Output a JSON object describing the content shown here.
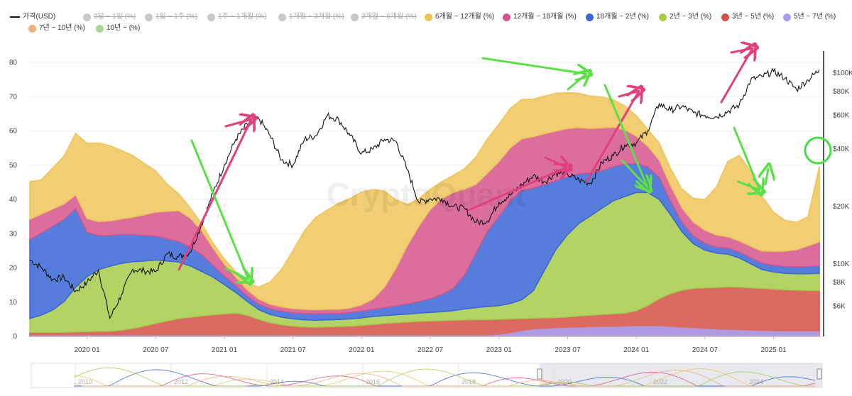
{
  "legend": {
    "items": [
      {
        "label": "가격(USD)",
        "color": "#111111",
        "kind": "line",
        "disabled": false
      },
      {
        "label": "0일 ~ 1일 (%)",
        "color": "#c8c8c8",
        "kind": "dot",
        "disabled": true
      },
      {
        "label": "1일 ~ 1주 (%)",
        "color": "#c8c8c8",
        "kind": "dot",
        "disabled": true
      },
      {
        "label": "1주 ~ 1개월 (%)",
        "color": "#c8c8c8",
        "kind": "dot",
        "disabled": true
      },
      {
        "label": "1개월 ~ 3개월 (%)",
        "color": "#c8c8c8",
        "kind": "dot",
        "disabled": true
      },
      {
        "label": "3개월 ~ 6개월 (%)",
        "color": "#c8c8c8",
        "kind": "dot",
        "disabled": true
      },
      {
        "label": "6개월 ~ 12개월 (%)",
        "color": "#eec45a",
        "kind": "dot",
        "disabled": false
      },
      {
        "label": "12개월 ~ 18개월 (%)",
        "color": "#d6558c",
        "kind": "dot",
        "disabled": false
      },
      {
        "label": "18개월 ~ 2년 (%)",
        "color": "#3a66d6",
        "kind": "dot",
        "disabled": false
      },
      {
        "label": "2년 ~ 3년 (%)",
        "color": "#a6cc4a",
        "kind": "dot",
        "disabled": false
      },
      {
        "label": "3년 ~ 5년 (%)",
        "color": "#d65048",
        "kind": "dot",
        "disabled": false
      },
      {
        "label": "5년 ~ 7년 (%)",
        "color": "#a8a0ee",
        "kind": "dot",
        "disabled": false
      },
      {
        "label": "7년 ~ 10년 (%)",
        "color": "#f0b07a",
        "kind": "dot",
        "disabled": false
      },
      {
        "label": "10년 ~ (%)",
        "color": "#a6d890",
        "kind": "dot",
        "disabled": false
      }
    ]
  },
  "watermark": "CryptoQuant",
  "navigator": {
    "year_labels": [
      "2010",
      "2012",
      "2014",
      "2016",
      "2018",
      "2020",
      "2022",
      "2024"
    ]
  },
  "chart_data": {
    "type": "area",
    "stacked": true,
    "x_ticks": [
      "2020 01",
      "2020 07",
      "2021 01",
      "2021 07",
      "2022 01",
      "2022 07",
      "2023 01",
      "2023 07",
      "2024 01",
      "2024 07",
      "2025 01"
    ],
    "x_dates": [
      "2019-08",
      "2019-09",
      "2019-10",
      "2019-11",
      "2019-12",
      "2020-01",
      "2020-02",
      "2020-03",
      "2020-04",
      "2020-05",
      "2020-06",
      "2020-07",
      "2020-08",
      "2020-09",
      "2020-10",
      "2020-11",
      "2020-12",
      "2021-01",
      "2021-02",
      "2021-03",
      "2021-04",
      "2021-05",
      "2021-06",
      "2021-07",
      "2021-08",
      "2021-09",
      "2021-10",
      "2021-11",
      "2021-12",
      "2022-01",
      "2022-02",
      "2022-03",
      "2022-04",
      "2022-05",
      "2022-06",
      "2022-07",
      "2022-08",
      "2022-09",
      "2022-10",
      "2022-11",
      "2022-12",
      "2023-01",
      "2023-02",
      "2023-03",
      "2023-04",
      "2023-05",
      "2023-06",
      "2023-07",
      "2023-08",
      "2023-09",
      "2023-10",
      "2023-11",
      "2023-12",
      "2024-01",
      "2024-02",
      "2024-03",
      "2024-04",
      "2024-05",
      "2024-06",
      "2024-07",
      "2024-08",
      "2024-09",
      "2024-10",
      "2024-11",
      "2024-12",
      "2025-01",
      "2025-02",
      "2025-03",
      "2025-04",
      "2025-05"
    ],
    "y_left": {
      "ticks": [
        0,
        10,
        20,
        30,
        40,
        50,
        60,
        70,
        80
      ],
      "ylim": [
        0,
        82
      ]
    },
    "y_right": {
      "scale": "log",
      "ticks": [
        "$6K",
        "$8K",
        "$10K",
        "$20K",
        "$40K",
        "$60K",
        "$80K",
        "$100K"
      ],
      "tick_values": [
        6000,
        8000,
        10000,
        20000,
        40000,
        60000,
        80000,
        100000
      ]
    },
    "series": [
      {
        "name": "3년 ~ 5년 (%)",
        "color": "#d65048",
        "values": [
          1.2,
          1.2,
          1.2,
          1.2,
          1.3,
          1.4,
          1.5,
          1.5,
          1.8,
          2.3,
          3.0,
          3.8,
          4.5,
          5.2,
          5.6,
          6.0,
          6.3,
          6.6,
          6.8,
          6.2,
          5.0,
          4.0,
          3.4,
          3.0,
          2.8,
          2.7,
          2.8,
          2.9,
          3.0,
          3.2,
          3.5,
          3.8,
          4.0,
          4.2,
          4.4,
          4.5,
          4.6,
          4.7,
          4.8,
          4.9,
          4.9,
          5.0,
          5.1,
          5.2,
          5.3,
          5.4,
          5.5,
          5.7,
          6.0,
          6.2,
          6.4,
          6.6,
          6.8,
          7.5,
          9.0,
          11.0,
          12.5,
          13.5,
          14.0,
          14.2,
          14.3,
          14.5,
          14.4,
          14.2,
          14.0,
          13.8,
          13.6,
          13.5,
          13.4,
          13.4
        ]
      },
      {
        "name": "2년 ~ 3년 (%)",
        "color": "#a6cc4a",
        "values": [
          4.0,
          5.0,
          6.5,
          9.0,
          13.0,
          16.0,
          18.0,
          19.0,
          19.5,
          19.5,
          19.0,
          18.5,
          17.5,
          16.5,
          15.0,
          13.0,
          11.0,
          8.5,
          6.0,
          4.0,
          2.8,
          2.4,
          2.2,
          2.1,
          2.0,
          2.0,
          2.0,
          2.0,
          2.1,
          2.2,
          2.3,
          2.3,
          2.3,
          2.3,
          2.4,
          2.5,
          2.6,
          2.8,
          3.2,
          3.5,
          3.8,
          4.0,
          4.5,
          5.5,
          8.0,
          14.0,
          20.0,
          24.0,
          27.0,
          29.0,
          31.0,
          33.0,
          34.0,
          34.5,
          33.0,
          29.0,
          23.0,
          17.0,
          13.0,
          11.0,
          10.0,
          9.5,
          8.5,
          7.0,
          5.5,
          5.0,
          4.8,
          4.8,
          4.9,
          5.0
        ]
      },
      {
        "name": "18개월 ~ 2년 (%)",
        "color": "#3a66d6",
        "values": [
          23.0,
          24.0,
          24.5,
          24.0,
          23.0,
          13.0,
          10.0,
          9.0,
          8.5,
          8.0,
          7.5,
          7.0,
          6.5,
          6.0,
          5.5,
          5.0,
          3.5,
          2.5,
          2.0,
          1.6,
          1.6,
          1.7,
          1.8,
          1.8,
          1.9,
          1.9,
          1.9,
          1.8,
          1.9,
          2.0,
          2.1,
          2.3,
          2.6,
          3.0,
          3.4,
          4.0,
          5.0,
          6.5,
          10.0,
          16.0,
          22.0,
          26.0,
          30.0,
          32.0,
          30.0,
          25.0,
          20.0,
          17.0,
          14.5,
          12.5,
          11.0,
          10.0,
          9.5,
          8.5,
          7.5,
          6.5,
          4.0,
          2.8,
          2.3,
          2.0,
          1.8,
          1.8,
          1.8,
          1.8,
          1.9,
          2.0,
          2.0,
          2.0,
          2.1,
          2.2
        ]
      },
      {
        "name": "12개월 ~ 18개월 (%)",
        "color": "#d6558c",
        "values": [
          6.0,
          5.5,
          5.0,
          4.5,
          4.0,
          4.0,
          4.0,
          4.2,
          4.5,
          5.0,
          6.0,
          7.0,
          8.0,
          9.0,
          8.5,
          7.0,
          5.0,
          3.5,
          2.5,
          1.8,
          1.5,
          1.3,
          1.2,
          1.2,
          1.2,
          1.2,
          1.2,
          1.2,
          1.3,
          1.8,
          3.0,
          6.0,
          11.0,
          17.0,
          22.0,
          26.0,
          28.0,
          28.0,
          25.0,
          20.0,
          17.0,
          16.0,
          15.5,
          15.0,
          15.0,
          14.8,
          14.5,
          14.0,
          13.5,
          13.0,
          12.5,
          11.5,
          10.0,
          8.0,
          6.0,
          5.0,
          4.5,
          4.2,
          4.0,
          3.8,
          3.5,
          3.3,
          3.2,
          3.3,
          3.5,
          4.0,
          4.5,
          5.0,
          6.0,
          7.0
        ]
      },
      {
        "name": "6개월 ~ 12개월 (%)",
        "color": "#eec45a",
        "values": [
          11.0,
          10.0,
          12.0,
          14.0,
          18.0,
          22.0,
          23.0,
          22.0,
          20.0,
          18.0,
          15.0,
          12.0,
          8.0,
          5.0,
          3.0,
          2.0,
          1.5,
          1.5,
          1.6,
          2.0,
          3.5,
          6.5,
          11.0,
          17.0,
          23.0,
          27.0,
          29.0,
          31.0,
          32.0,
          33.0,
          32.0,
          28.0,
          20.0,
          12.0,
          8.0,
          6.0,
          5.0,
          5.0,
          6.0,
          8.0,
          10.0,
          11.0,
          11.5,
          11.5,
          11.0,
          11.0,
          11.0,
          10.5,
          10.0,
          9.5,
          9.0,
          8.0,
          7.0,
          6.0,
          5.0,
          5.0,
          5.0,
          5.5,
          7.0,
          9.0,
          14.0,
          22.0,
          25.0,
          22.0,
          16.0,
          11.5,
          9.0,
          8.0,
          8.5,
          22.0
        ]
      },
      {
        "name": "5년 ~ 7년 (%)",
        "color": "#a8a0ee",
        "values": [
          0.3,
          0.3,
          0.3,
          0.3,
          0.3,
          0.3,
          0.3,
          0.3,
          0.3,
          0.3,
          0.3,
          0.3,
          0.3,
          0.3,
          0.3,
          0.3,
          0.3,
          0.3,
          0.3,
          0.3,
          0.3,
          0.3,
          0.3,
          0.3,
          0.3,
          0.3,
          0.3,
          0.3,
          0.3,
          0.3,
          0.3,
          0.3,
          0.3,
          0.3,
          0.3,
          0.3,
          0.3,
          0.3,
          0.3,
          0.3,
          0.3,
          0.5,
          1.0,
          1.6,
          2.0,
          2.2,
          2.4,
          2.5,
          2.6,
          2.7,
          2.8,
          2.8,
          2.9,
          3.0,
          3.0,
          3.0,
          2.8,
          2.6,
          2.4,
          2.2,
          2.0,
          1.9,
          1.8,
          1.7,
          1.6,
          1.5,
          1.5,
          1.5,
          1.5,
          1.5
        ]
      },
      {
        "name": "가격(USD)",
        "color": "#111111",
        "axis": "right",
        "values": [
          10500,
          9600,
          8300,
          8500,
          7200,
          8000,
          9300,
          5200,
          6900,
          9400,
          9200,
          9100,
          11300,
          10900,
          11500,
          16000,
          23500,
          33000,
          45000,
          54000,
          58000,
          47000,
          35000,
          33000,
          45000,
          47000,
          60000,
          57000,
          47000,
          38000,
          40000,
          45000,
          44000,
          31000,
          21000,
          22000,
          22000,
          20000,
          19500,
          16500,
          16800,
          21000,
          23000,
          26000,
          29000,
          27000,
          30000,
          29500,
          27500,
          26500,
          34000,
          37000,
          42000,
          43000,
          50000,
          69000,
          64000,
          67000,
          62000,
          60000,
          59000,
          63000,
          68000,
          92000,
          96000,
          102000,
          94000,
          82000,
          92000,
          104000
        ]
      }
    ],
    "annotations": [
      {
        "shape": "circle",
        "color": "#44dd44"
      }
    ]
  }
}
